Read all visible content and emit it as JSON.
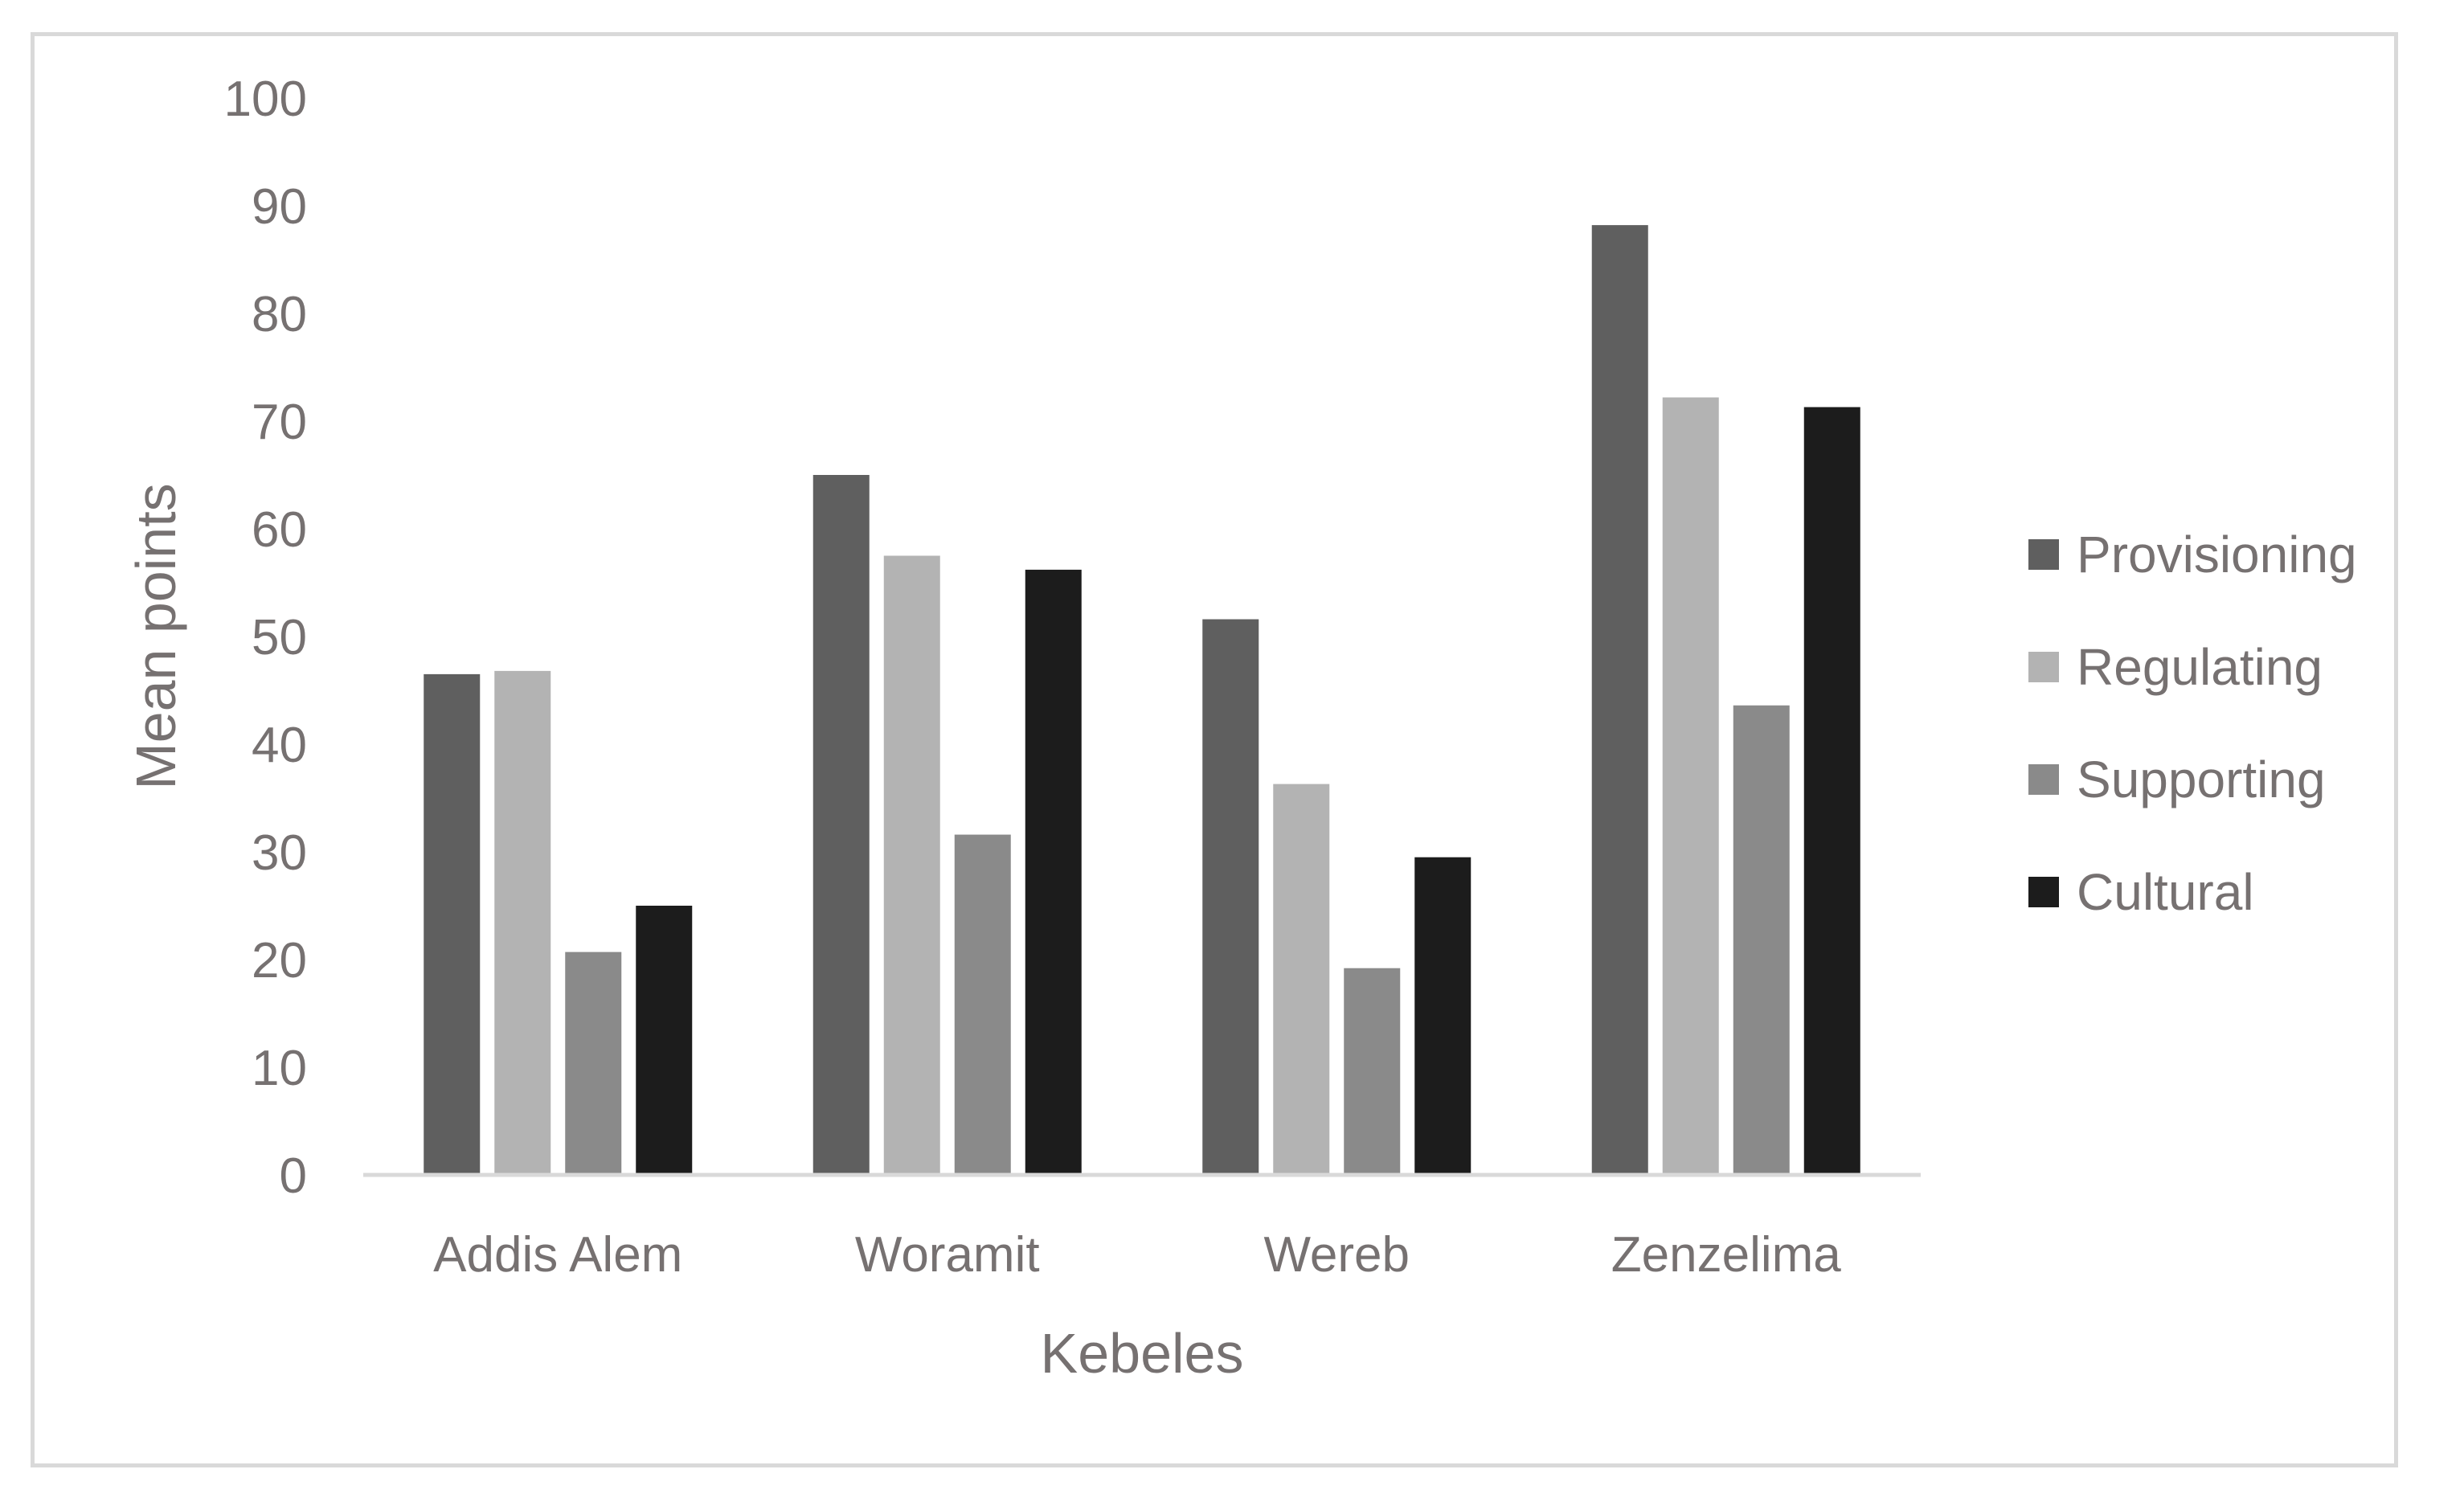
{
  "chart_data": {
    "type": "bar",
    "title": "",
    "xlabel": "Kebeles",
    "ylabel": "Mean points",
    "ylim": [
      0,
      100
    ],
    "yticks": [
      0,
      10,
      20,
      30,
      40,
      50,
      60,
      70,
      80,
      90,
      100
    ],
    "categories": [
      "Addis Alem",
      "Woramit",
      "Wereb",
      "Zenzelima"
    ],
    "series": [
      {
        "name": "Provisioning",
        "values": [
          46.5,
          65.0,
          51.6,
          88.2
        ],
        "color": "#5f5f5f"
      },
      {
        "name": "Regulating",
        "values": [
          46.8,
          57.5,
          36.3,
          72.2
        ],
        "color": "#b3b3b3"
      },
      {
        "name": "Supporting",
        "values": [
          20.7,
          31.6,
          19.2,
          43.6
        ],
        "color": "#8a8a8a"
      },
      {
        "name": "Cultural",
        "values": [
          25.0,
          56.2,
          29.5,
          71.3
        ],
        "color": "#1c1c1c"
      }
    ],
    "grid": false,
    "legend_position": "right"
  }
}
